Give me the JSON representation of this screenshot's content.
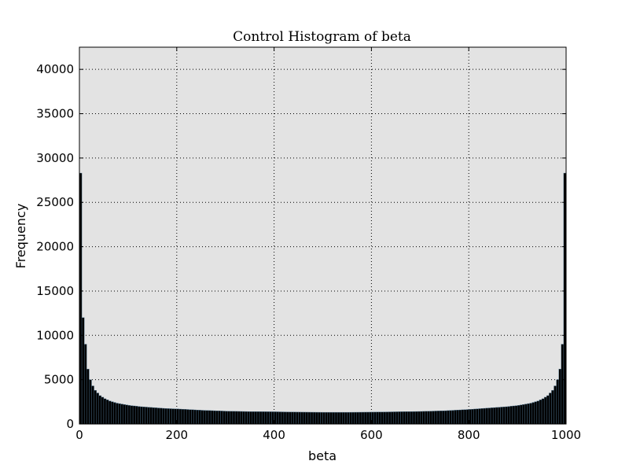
{
  "chart_data": {
    "type": "bar",
    "title": "Control Histogram of beta",
    "xlabel": "beta",
    "ylabel": "Frequency",
    "xlim": [
      0,
      1000
    ],
    "ylim": [
      0,
      42500
    ],
    "x_ticks": [
      "0",
      "200",
      "400",
      "600",
      "800",
      "1000"
    ],
    "y_ticks": [
      "0",
      "5000",
      "10000",
      "15000",
      "20000",
      "25000",
      "30000",
      "35000",
      "40000"
    ],
    "grid": true,
    "legend": "none",
    "bin_width": 5,
    "bar_color": "#000000",
    "bar_edge_color": "#4a6f8a",
    "plot_background": "#e3e3e3",
    "bins_x": [
      0,
      5,
      10,
      15,
      20,
      25,
      30,
      40,
      50,
      60,
      75,
      100,
      125,
      150,
      175,
      200,
      250,
      300,
      350,
      400,
      450,
      500,
      550,
      600,
      650,
      700,
      750,
      800,
      825,
      850,
      875,
      900,
      925,
      940,
      950,
      960,
      970,
      975,
      980,
      985,
      990,
      995
    ],
    "bins_y": [
      28300,
      12000,
      9000,
      6200,
      5000,
      4300,
      3800,
      3200,
      2850,
      2600,
      2350,
      2100,
      1950,
      1850,
      1750,
      1700,
      1550,
      1450,
      1400,
      1380,
      1340,
      1320,
      1320,
      1340,
      1380,
      1420,
      1500,
      1650,
      1750,
      1850,
      1950,
      2100,
      2350,
      2600,
      2850,
      3200,
      3800,
      4300,
      5000,
      6200,
      9000,
      28300
    ]
  }
}
